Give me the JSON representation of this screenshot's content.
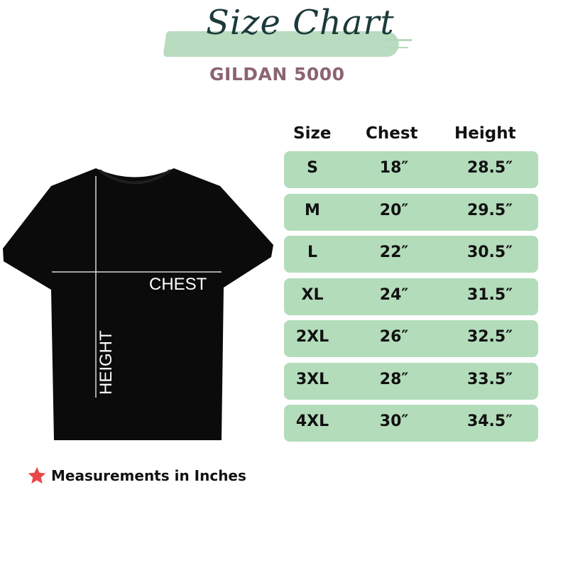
{
  "header": {
    "title": "Size Chart",
    "subtitle": "GILDAN 5000"
  },
  "colors": {
    "row_bg": "#b3dcbb",
    "brush": "#b5d9bc",
    "title": "#1d3a3a",
    "subtitle": "#8c6470",
    "shirt": "#0b0b0c",
    "star": "#e8474a"
  },
  "shirt": {
    "chest_label": "CHEST",
    "height_label": "HEIGHT"
  },
  "table": {
    "columns": [
      "Size",
      "Chest",
      "Height"
    ],
    "rows": [
      {
        "size": "S",
        "chest": "18″",
        "height": "28.5″"
      },
      {
        "size": "M",
        "chest": "20″",
        "height": "29.5″"
      },
      {
        "size": "L",
        "chest": "22″",
        "height": "30.5″"
      },
      {
        "size": "XL",
        "chest": "24″",
        "height": "31.5″"
      },
      {
        "size": "2XL",
        "chest": "26″",
        "height": "32.5″"
      },
      {
        "size": "3XL",
        "chest": "28″",
        "height": "33.5″"
      },
      {
        "size": "4XL",
        "chest": "30″",
        "height": "34.5″"
      }
    ]
  },
  "footer": {
    "note": "Measurements in Inches",
    "icon": "star-icon"
  }
}
